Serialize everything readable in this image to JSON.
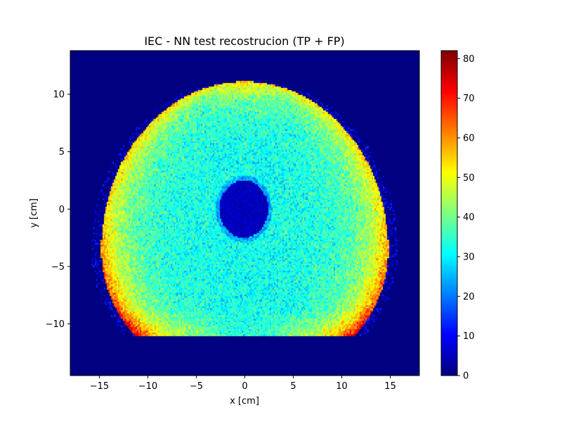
{
  "chart_data": {
    "type": "heatmap",
    "title": "IEC - NN test recostrucion (TP + FP)",
    "xlabel": "x [cm]",
    "ylabel": "y [cm]",
    "xlim": [
      -18,
      18
    ],
    "ylim": [
      -14.5,
      13.8
    ],
    "xticks": [
      -15,
      -10,
      -5,
      0,
      5,
      10,
      15
    ],
    "xtick_labels": [
      "−15",
      "−10",
      "−5",
      "0",
      "5",
      "10",
      "15"
    ],
    "yticks": [
      -10,
      -5,
      0,
      5,
      10
    ],
    "ytick_labels": [
      "−10",
      "−5",
      "0",
      "5",
      "10"
    ],
    "colormap": "jet",
    "colorbar": {
      "range": [
        0,
        82
      ],
      "ticks": [
        0,
        10,
        20,
        30,
        40,
        50,
        60,
        70,
        80
      ],
      "tick_labels": [
        "0",
        "10",
        "20",
        "30",
        "40",
        "50",
        "60",
        "70",
        "80"
      ]
    },
    "grid": false,
    "background_value": 0,
    "phantom": {
      "description_shape": "rounded body: half-ellipse top, flat bottom",
      "center_x": 0,
      "bottom_y": -11.1,
      "top_y": 11.1,
      "widest_y": -3.5,
      "half_width_max": 14.8,
      "bottom_corner_half_width": 11.3,
      "interior_value": 32,
      "edge_value": 55,
      "edge_peak_value": 72,
      "edge_thickness": 2.5
    },
    "cold_insert": {
      "center_x": -0.1,
      "center_y": 0.0,
      "radius_x": 2.5,
      "radius_y": 2.5,
      "value": 5
    },
    "bin_size": 0.15
  }
}
